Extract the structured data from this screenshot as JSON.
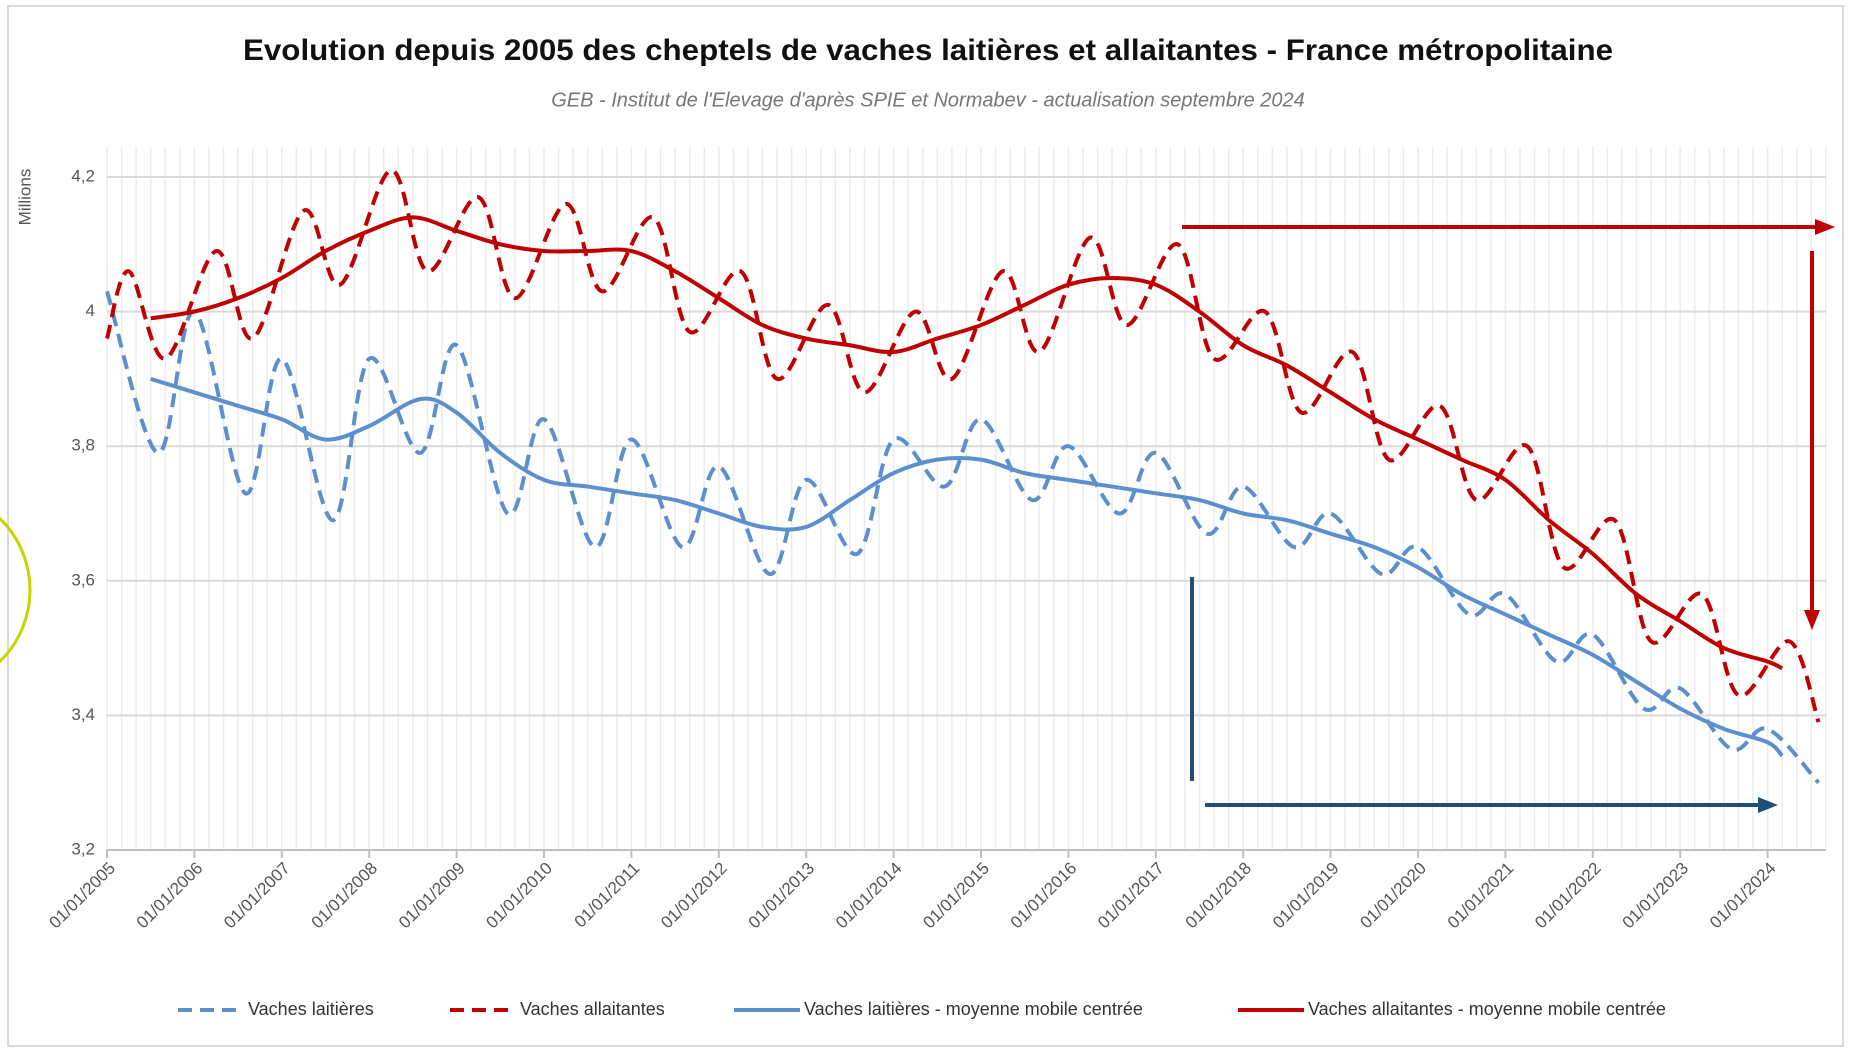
{
  "chart_data": {
    "type": "line",
    "title": "Evolution depuis 2005 des cheptels de vaches laitières et allaitantes - France métropolitaine",
    "subtitle": "GEB - Institut de l'Elevage d'après SPIE et Normabev - actualisation septembre 2024",
    "y_label": "Millions",
    "xlim": [
      "01/01/2005",
      "01/09/2024"
    ],
    "xticks": [
      "01/01/2005",
      "01/01/2006",
      "01/01/2007",
      "01/01/2008",
      "01/01/2009",
      "01/01/2010",
      "01/01/2011",
      "01/01/2012",
      "01/01/2013",
      "01/01/2014",
      "01/01/2015",
      "01/01/2016",
      "01/01/2017",
      "01/01/2018",
      "01/01/2019",
      "01/01/2020",
      "01/01/2021",
      "01/01/2022",
      "01/01/2023",
      "01/01/2024"
    ],
    "ylim": [
      3.2,
      4.2
    ],
    "yticks": [
      {
        "value": 3.2,
        "label": "3,2"
      },
      {
        "value": 3.4,
        "label": "3,4"
      },
      {
        "value": 3.6,
        "label": "3,6"
      },
      {
        "value": 3.8,
        "label": "3,8"
      },
      4,
      {
        "value": 4.2,
        "label": "4,2"
      }
    ],
    "grid": true,
    "legend": "bottom",
    "series": [
      {
        "name": "Vaches laitières",
        "color": "#5b8fce",
        "dash": true,
        "x": [
          "01/01/2005",
          "01/08/2005",
          "01/01/2006",
          "01/08/2006",
          "01/01/2007",
          "01/08/2007",
          "01/01/2008",
          "01/08/2008",
          "01/01/2009",
          "01/08/2009",
          "01/01/2010",
          "01/08/2010",
          "01/01/2011",
          "01/08/2011",
          "01/01/2012",
          "01/08/2012",
          "01/01/2013",
          "01/08/2013",
          "01/01/2014",
          "01/08/2014",
          "01/01/2015",
          "01/08/2015",
          "01/01/2016",
          "01/08/2016",
          "01/01/2017",
          "01/08/2017",
          "01/01/2018",
          "01/08/2018",
          "01/01/2019",
          "01/08/2019",
          "01/01/2020",
          "01/08/2020",
          "01/01/2021",
          "01/08/2021",
          "01/01/2022",
          "01/08/2022",
          "01/01/2023",
          "01/08/2023",
          "01/01/2024",
          "01/08/2024"
        ],
        "values": [
          4.03,
          3.79,
          4.0,
          3.73,
          3.93,
          3.69,
          3.93,
          3.79,
          3.95,
          3.7,
          3.84,
          3.65,
          3.81,
          3.65,
          3.77,
          3.61,
          3.75,
          3.64,
          3.81,
          3.74,
          3.84,
          3.72,
          3.8,
          3.7,
          3.79,
          3.67,
          3.74,
          3.65,
          3.7,
          3.61,
          3.65,
          3.55,
          3.58,
          3.48,
          3.52,
          3.41,
          3.44,
          3.35,
          3.38,
          3.3
        ]
      },
      {
        "name": "Vaches allaitantes",
        "color": "#c00000",
        "dash": true,
        "x": [
          "01/01/2005",
          "01/04/2005",
          "01/09/2005",
          "01/04/2006",
          "01/09/2006",
          "01/04/2007",
          "01/09/2007",
          "01/04/2008",
          "01/09/2008",
          "01/04/2009",
          "01/09/2009",
          "01/04/2010",
          "01/09/2010",
          "01/04/2011",
          "01/09/2011",
          "01/04/2012",
          "01/09/2012",
          "01/04/2013",
          "01/09/2013",
          "01/04/2014",
          "01/09/2014",
          "01/04/2015",
          "01/09/2015",
          "01/04/2016",
          "01/09/2016",
          "01/04/2017",
          "01/09/2017",
          "01/04/2018",
          "01/09/2018",
          "01/04/2019",
          "01/09/2019",
          "01/04/2020",
          "01/09/2020",
          "01/04/2021",
          "01/09/2021",
          "01/04/2022",
          "01/09/2022",
          "01/04/2023",
          "01/09/2023",
          "01/04/2024",
          "01/08/2024"
        ],
        "values": [
          3.96,
          4.06,
          3.93,
          4.09,
          3.96,
          4.15,
          4.04,
          4.21,
          4.06,
          4.17,
          4.02,
          4.16,
          4.03,
          4.14,
          3.97,
          4.06,
          3.9,
          4.01,
          3.88,
          4.0,
          3.9,
          4.06,
          3.94,
          4.11,
          3.98,
          4.1,
          3.93,
          4.0,
          3.85,
          3.94,
          3.78,
          3.86,
          3.72,
          3.8,
          3.62,
          3.69,
          3.51,
          3.58,
          3.43,
          3.51,
          3.39
        ]
      },
      {
        "name": "Vaches laitières - moyenne mobile centrée",
        "color": "#5b8fce",
        "dash": false,
        "x": [
          "01/07/2005",
          "01/07/2006",
          "01/01/2007",
          "01/07/2007",
          "01/01/2008",
          "01/08/2008",
          "01/01/2009",
          "01/07/2009",
          "01/01/2010",
          "01/07/2010",
          "01/01/2011",
          "01/07/2011",
          "01/01/2012",
          "01/07/2012",
          "01/01/2013",
          "01/07/2013",
          "01/01/2014",
          "01/07/2014",
          "01/01/2015",
          "01/07/2015",
          "01/01/2016",
          "01/07/2016",
          "01/01/2017",
          "01/07/2017",
          "01/01/2018",
          "01/07/2018",
          "01/01/2019",
          "01/07/2019",
          "01/01/2020",
          "01/07/2020",
          "01/01/2021",
          "01/07/2021",
          "01/01/2022",
          "01/07/2022",
          "01/01/2023",
          "01/07/2023",
          "01/01/2024",
          "01/03/2024"
        ],
        "values": [
          3.9,
          3.86,
          3.84,
          3.81,
          3.83,
          3.87,
          3.85,
          3.79,
          3.75,
          3.74,
          3.73,
          3.72,
          3.7,
          3.68,
          3.68,
          3.72,
          3.76,
          3.78,
          3.78,
          3.76,
          3.75,
          3.74,
          3.73,
          3.72,
          3.7,
          3.69,
          3.67,
          3.65,
          3.62,
          3.58,
          3.55,
          3.52,
          3.49,
          3.45,
          3.41,
          3.38,
          3.36,
          3.34
        ]
      },
      {
        "name": "Vaches allaitantes - moyenne mobile centrée",
        "color": "#c00000",
        "dash": false,
        "x": [
          "01/07/2005",
          "01/01/2006",
          "01/07/2006",
          "01/01/2007",
          "01/07/2007",
          "01/01/2008",
          "01/07/2008",
          "01/01/2009",
          "01/07/2009",
          "01/01/2010",
          "01/07/2010",
          "01/01/2011",
          "01/07/2011",
          "01/01/2012",
          "01/07/2012",
          "01/01/2013",
          "01/07/2013",
          "01/01/2014",
          "01/07/2014",
          "01/01/2015",
          "01/07/2015",
          "01/01/2016",
          "01/07/2016",
          "01/01/2017",
          "01/07/2017",
          "01/01/2018",
          "01/07/2018",
          "01/01/2019",
          "01/07/2019",
          "01/01/2020",
          "01/07/2020",
          "01/01/2021",
          "01/07/2021",
          "01/01/2022",
          "01/07/2022",
          "01/01/2023",
          "01/07/2023",
          "01/01/2024",
          "01/03/2024"
        ],
        "values": [
          3.99,
          4.0,
          4.02,
          4.05,
          4.09,
          4.12,
          4.14,
          4.12,
          4.1,
          4.09,
          4.09,
          4.09,
          4.06,
          4.02,
          3.98,
          3.96,
          3.95,
          3.94,
          3.96,
          3.98,
          4.01,
          4.04,
          4.05,
          4.04,
          4.0,
          3.95,
          3.92,
          3.88,
          3.84,
          3.81,
          3.78,
          3.75,
          3.69,
          3.64,
          3.58,
          3.54,
          3.5,
          3.48,
          3.47
        ]
      }
    ]
  }
}
